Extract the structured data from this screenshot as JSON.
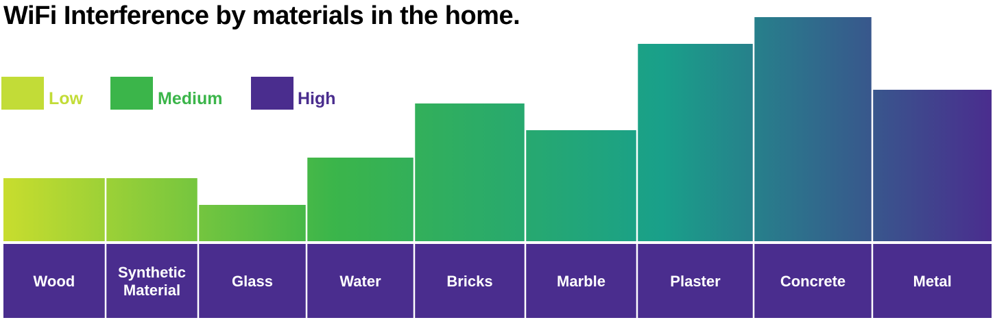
{
  "chart_data": {
    "type": "bar",
    "title": "WiFi Interference by materials in the home.",
    "categories": [
      "Wood",
      "Synthetic Material",
      "Glass",
      "Water",
      "Bricks",
      "Marble",
      "Plaster",
      "Concrete",
      "Metal"
    ],
    "category_lines": [
      [
        "Wood"
      ],
      [
        "Synthetic",
        "Material"
      ],
      [
        "Glass"
      ],
      [
        "Water"
      ],
      [
        "Bricks"
      ],
      [
        "Marble"
      ],
      [
        "Plaster"
      ],
      [
        "Concrete"
      ],
      [
        "Metal"
      ]
    ],
    "values": [
      92,
      92,
      53,
      122,
      201,
      162,
      288,
      327,
      221
    ],
    "ylim": [
      0,
      330
    ],
    "xlabel": "",
    "ylabel": "",
    "grid": false,
    "legend": {
      "placement": "top-left",
      "items": [
        {
          "label": "Low",
          "color": "#c2dc37"
        },
        {
          "label": "Medium",
          "color": "#3bb54a"
        },
        {
          "label": "High",
          "color": "#4a2d8e"
        }
      ]
    },
    "gradient_colors": [
      "#c8dd2e",
      "#3bb54a",
      "#19a08a",
      "#4a2d8e"
    ],
    "label_band_color": "#4a2d8e"
  }
}
